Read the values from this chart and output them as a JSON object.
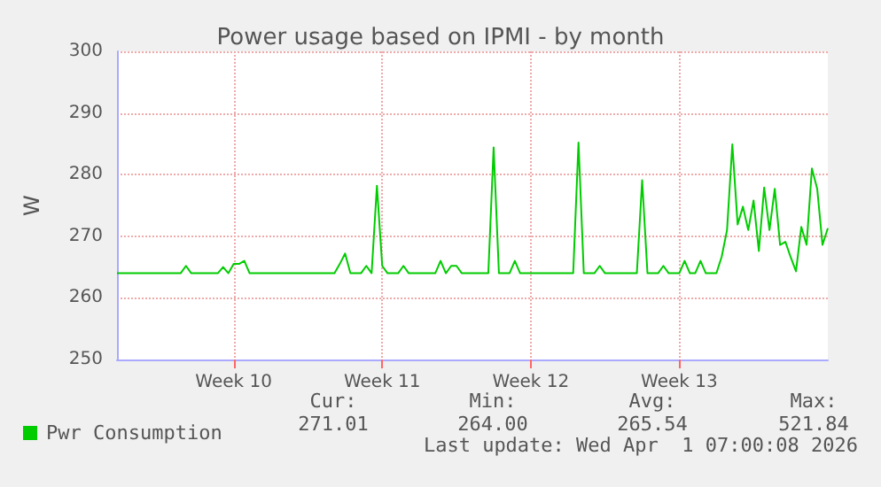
{
  "chart_data": {
    "type": "line",
    "title": "Power usage based on IPMI - by month",
    "ylabel": "W",
    "categories": [
      null,
      null,
      null,
      null,
      null,
      null,
      null,
      null,
      null,
      null,
      null,
      null,
      null,
      null,
      null,
      null,
      null,
      null,
      null,
      null,
      null,
      null,
      "Week 10",
      null,
      null,
      null,
      null,
      null,
      null,
      null,
      null,
      null,
      null,
      null,
      null,
      null,
      null,
      null,
      null,
      null,
      null,
      null,
      null,
      null,
      null,
      null,
      null,
      null,
      null,
      null,
      "Week 11",
      null,
      null,
      null,
      null,
      null,
      null,
      null,
      null,
      null,
      null,
      null,
      null,
      null,
      null,
      null,
      null,
      null,
      null,
      null,
      null,
      null,
      null,
      null,
      null,
      null,
      null,
      null,
      "Week 12",
      null,
      null,
      null,
      null,
      null,
      null,
      null,
      null,
      null,
      null,
      null,
      null,
      null,
      null,
      null,
      null,
      null,
      null,
      null,
      null,
      null,
      null,
      null,
      null,
      null,
      null,
      null,
      "Week 13",
      null,
      null,
      null,
      null,
      null,
      null,
      null,
      null,
      null,
      null,
      null,
      null,
      null,
      null,
      null,
      null,
      null,
      null,
      null,
      null,
      null,
      null,
      null,
      null,
      null,
      null,
      null,
      null
    ],
    "ylim": [
      250,
      300
    ],
    "yticks": [
      250,
      260,
      270,
      280,
      290,
      300
    ],
    "grid": true,
    "legend": "bottom left",
    "marker": "none",
    "line_style": "solid",
    "series": [
      {
        "name": "Pwr Consumption",
        "color": "#00cc00",
        "values": [
          264,
          264,
          264,
          264,
          264,
          264,
          264,
          264,
          264,
          264,
          264,
          264,
          264,
          265.2,
          264,
          264,
          264,
          264,
          264,
          264,
          265,
          264,
          265.5,
          265.5,
          266,
          264,
          264,
          264,
          264,
          264,
          264,
          264,
          264,
          264,
          264,
          264,
          264,
          264,
          264,
          264,
          264,
          264,
          265.5,
          267.2,
          264,
          264,
          264,
          265.2,
          264,
          278.2,
          265.2,
          264,
          264,
          264,
          265.2,
          264,
          264,
          264,
          264,
          264,
          264,
          266,
          264,
          265.2,
          265.2,
          264,
          264,
          264,
          264,
          264,
          264,
          284.4,
          264,
          264,
          264,
          266,
          264,
          264,
          264,
          264,
          264,
          264,
          264,
          264,
          264,
          264,
          264,
          285.2,
          264,
          264,
          264,
          265.2,
          264,
          264,
          264,
          264,
          264,
          264,
          264,
          279.1,
          264,
          264,
          264,
          265.2,
          264,
          264,
          264,
          266,
          264,
          264,
          266,
          264,
          264,
          264,
          266.7,
          271,
          284.9,
          271.9,
          274.8,
          271,
          275.8,
          267.6,
          277.9,
          271,
          277.7,
          268.6,
          269.1,
          266.6,
          264.3,
          271.5,
          268.6,
          281,
          277.7,
          268.6,
          271.3
        ]
      }
    ],
    "annotations": [
      "Cur:",
      "271.01",
      "Min:",
      "264.00",
      "Avg:",
      "265.54",
      "Max:",
      "521.84",
      "Last update: Wed Apr  1 07:00:08 2026"
    ]
  }
}
